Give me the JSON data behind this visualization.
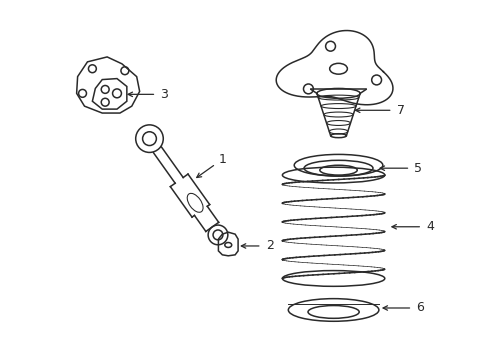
{
  "background_color": "#ffffff",
  "line_color": "#2a2a2a",
  "label_color": "#2a2a2a",
  "figsize": [
    4.89,
    3.6
  ],
  "dpi": 100
}
